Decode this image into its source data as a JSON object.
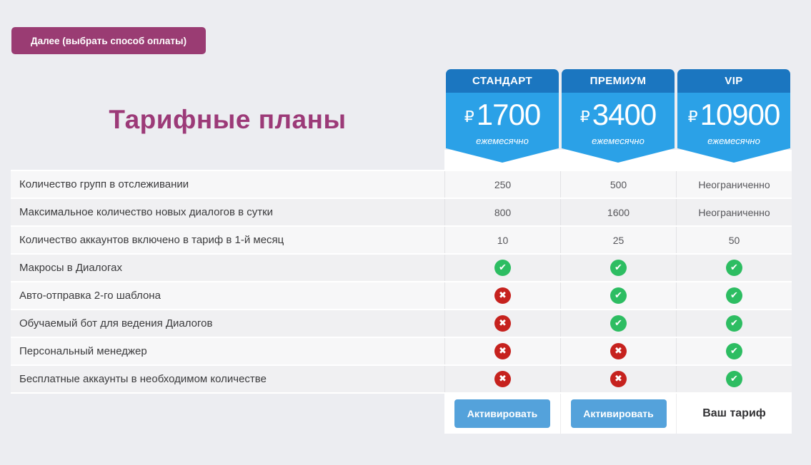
{
  "page": {
    "background": "#ecedf1"
  },
  "toolbar": {
    "next_button_label": "Далее (выбрать способ оплаты)"
  },
  "title": "Тарифные планы",
  "plans": [
    {
      "name": "СТАНДАРТ",
      "currency": "₽",
      "price": "1700",
      "period": "ежемесячно",
      "action": {
        "type": "button",
        "label": "Активировать"
      }
    },
    {
      "name": "ПРЕМИУМ",
      "currency": "₽",
      "price": "3400",
      "period": "ежемесячно",
      "action": {
        "type": "button",
        "label": "Активировать"
      }
    },
    {
      "name": "VIP",
      "currency": "₽",
      "price": "10900",
      "period": "ежемесячно",
      "action": {
        "type": "text",
        "label": "Ваш тариф"
      }
    }
  ],
  "features": [
    {
      "label": "Количество групп в отслеживании",
      "values": [
        "250",
        "500",
        "Неограниченно"
      ]
    },
    {
      "label": "Максимальное количество новых диалогов в сутки",
      "values": [
        "800",
        "1600",
        "Неограниченно"
      ]
    },
    {
      "label": "Количество аккаунтов включено в тариф в 1-й месяц",
      "values": [
        "10",
        "25",
        "50"
      ]
    },
    {
      "label": "Макросы в Диалогах",
      "values": [
        "yes",
        "yes",
        "yes"
      ]
    },
    {
      "label": "Авто-отправка 2-го шаблона",
      "values": [
        "no",
        "yes",
        "yes"
      ]
    },
    {
      "label": "Обучаемый бот для ведения Диалогов",
      "values": [
        "no",
        "yes",
        "yes"
      ]
    },
    {
      "label": "Персональный менеджер",
      "values": [
        "no",
        "no",
        "yes"
      ]
    },
    {
      "label": "Бесплатные аккаунты в необходимом количестве",
      "values": [
        "no",
        "no",
        "yes"
      ]
    }
  ],
  "icons": {
    "check-icon": "✔",
    "cross-icon": "✖"
  },
  "colors": {
    "accent_purple": "#9a3c73",
    "title_purple": "#9c3a78",
    "header_dark_blue": "#1b76c0",
    "header_light_blue": "#2ba1e7",
    "check_green": "#2dbd62",
    "cross_red": "#c6221e",
    "activate_blue": "#54a2db"
  }
}
